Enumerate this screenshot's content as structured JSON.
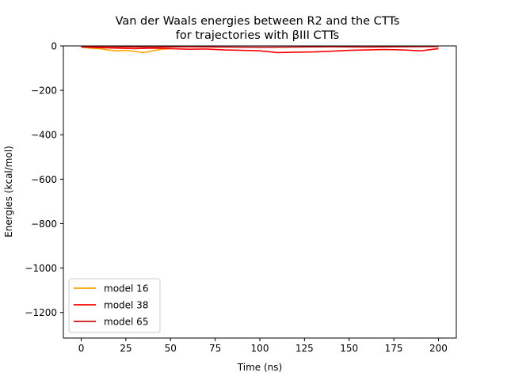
{
  "chart_data": {
    "type": "line",
    "title": "Van der Waals energies between R2 and the CTTs\nfor trajectories with βIII CTTs",
    "title_lines": [
      "Van der Waals energies between R2 and the CTTs",
      "for trajectories with βIII CTTs"
    ],
    "xlabel": "Time (ns)",
    "ylabel": "Energies (kcal/mol)",
    "xlim": [
      -10,
      210
    ],
    "ylim": [
      -1315,
      0
    ],
    "xticks": [
      0,
      25,
      50,
      75,
      100,
      125,
      150,
      175,
      200
    ],
    "xtick_labels": [
      "0",
      "25",
      "50",
      "75",
      "100",
      "125",
      "150",
      "175",
      "200"
    ],
    "yticks": [
      0,
      -200,
      -400,
      -600,
      -800,
      -1000,
      -1200
    ],
    "ytick_labels": [
      "0",
      "−200",
      "−400",
      "−600",
      "−800",
      "−1000",
      "−1200"
    ],
    "grid": false,
    "legend_position": "lower-left",
    "series": [
      {
        "name": "model 16",
        "color": "#ffa500",
        "x": [
          0,
          5,
          10,
          15,
          20,
          25,
          30,
          35,
          40,
          45,
          50
        ],
        "values": [
          -5,
          -10,
          -12,
          -18,
          -22,
          -20,
          -25,
          -30,
          -22,
          -15,
          -12
        ]
      },
      {
        "name": "model 38",
        "color": "#ff0000",
        "x": [
          0,
          10,
          20,
          30,
          40,
          50,
          60,
          70,
          80,
          90,
          100,
          105,
          110,
          120,
          130,
          140,
          150,
          160,
          170,
          180,
          190,
          200
        ],
        "values": [
          -5,
          -8,
          -10,
          -12,
          -10,
          -12,
          -15,
          -14,
          -18,
          -20,
          -22,
          -26,
          -30,
          -28,
          -27,
          -24,
          -20,
          -18,
          -16,
          -18,
          -22,
          -12
        ]
      },
      {
        "name": "model 65",
        "color": "#cc1111",
        "x": [
          0,
          20,
          40,
          60,
          80,
          100,
          120,
          140,
          160,
          180,
          200
        ],
        "values": [
          -3,
          -4,
          -5,
          -4,
          -5,
          -6,
          -5,
          -4,
          -5,
          -4,
          -3
        ]
      }
    ]
  }
}
